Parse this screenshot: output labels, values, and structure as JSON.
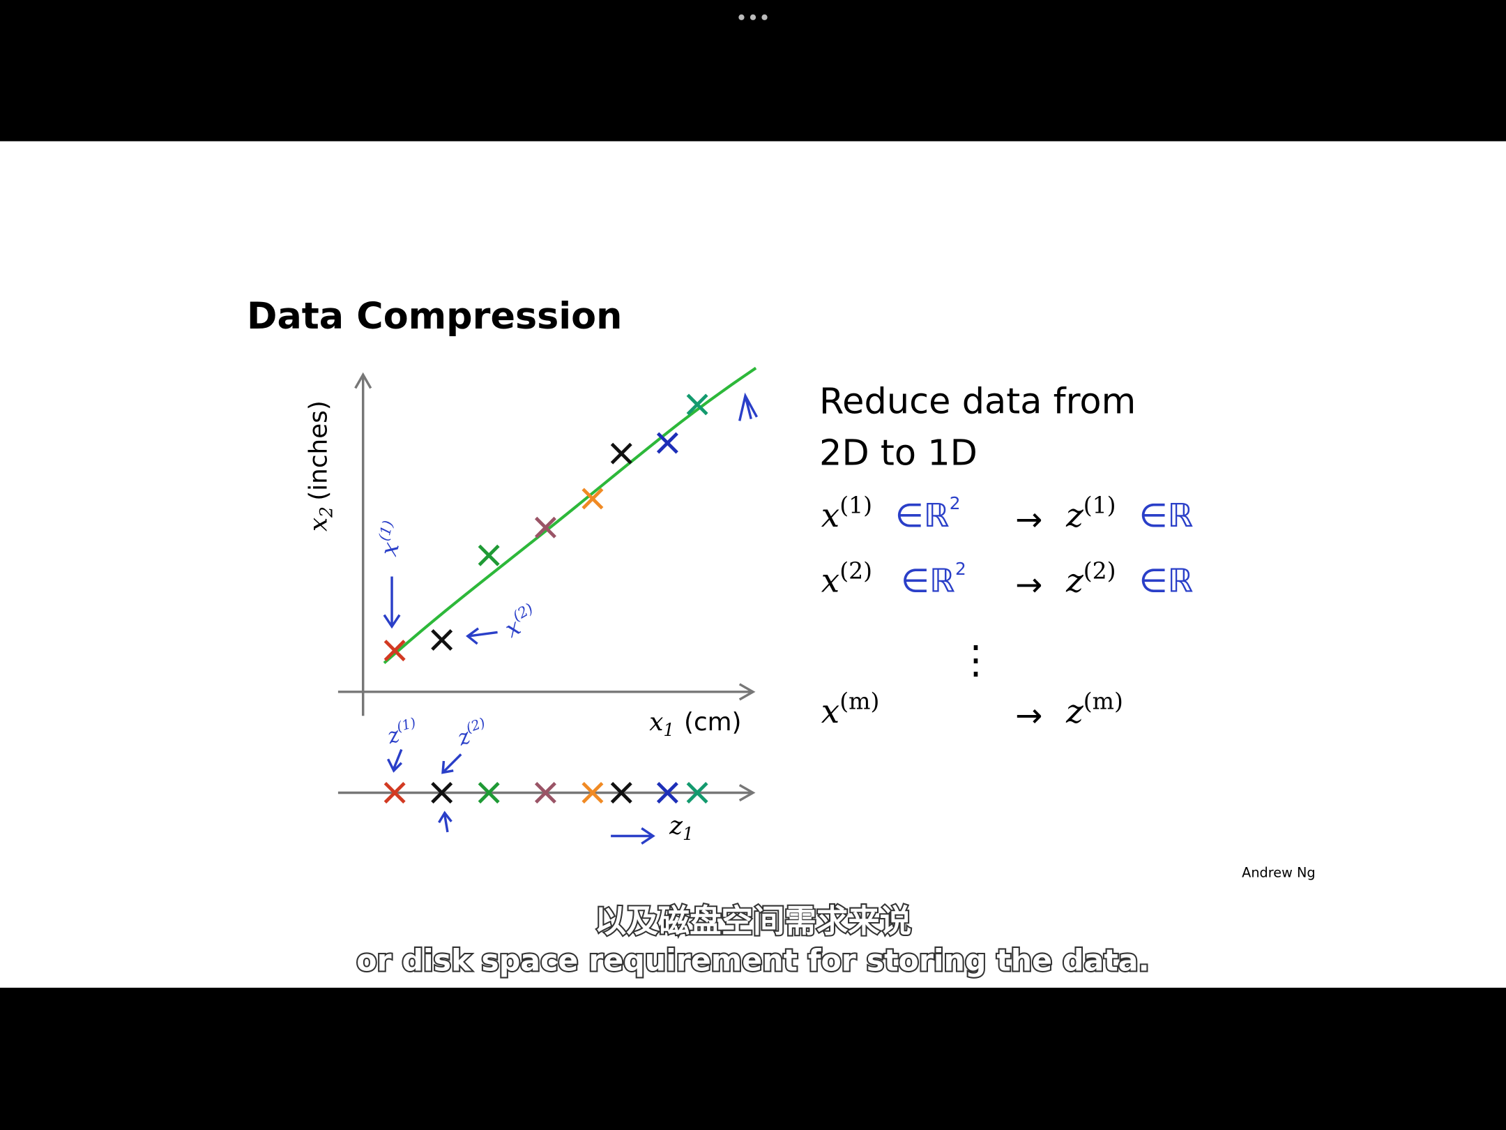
{
  "slide": {
    "title": "Data Compression",
    "y_axis_label": {
      "var": "x",
      "sub": "2",
      "unit": "(inches)"
    },
    "x_axis_label": {
      "var": "x",
      "sub": "1",
      "unit": "(cm)"
    },
    "z_axis_label": {
      "var": "z",
      "sub": "1"
    },
    "annotations": [
      {
        "var": "x",
        "sup": "(1)"
      },
      {
        "var": "x",
        "sup": "(2)"
      },
      {
        "var": "z",
        "sup": "(1)"
      },
      {
        "var": "z",
        "sup": "(2)"
      }
    ],
    "statement": [
      "Reduce data from",
      "2D to 1D"
    ],
    "mappings": [
      {
        "from": "x",
        "from_sup": "(1)",
        "from_set": "∈ℝ",
        "from_set_sup": "2",
        "arrow": "→",
        "to": "z",
        "to_sup": "(1)",
        "to_set": "∈ℝ"
      },
      {
        "from": "x",
        "from_sup": "(2)",
        "from_set": "∈ℝ",
        "from_set_sup": "2",
        "arrow": "→",
        "to": "z",
        "to_sup": "(2)",
        "to_set": "∈ℝ"
      },
      {
        "from": "x",
        "from_sup": "(m)",
        "arrow": "→",
        "to": "z",
        "to_sup": "(m)"
      }
    ],
    "ellipsis": "⋮",
    "credit": "Andrew Ng"
  },
  "subtitles": {
    "chinese": "以及磁盘空间需求来说",
    "english": "or disk space requirement for storing the data."
  }
}
